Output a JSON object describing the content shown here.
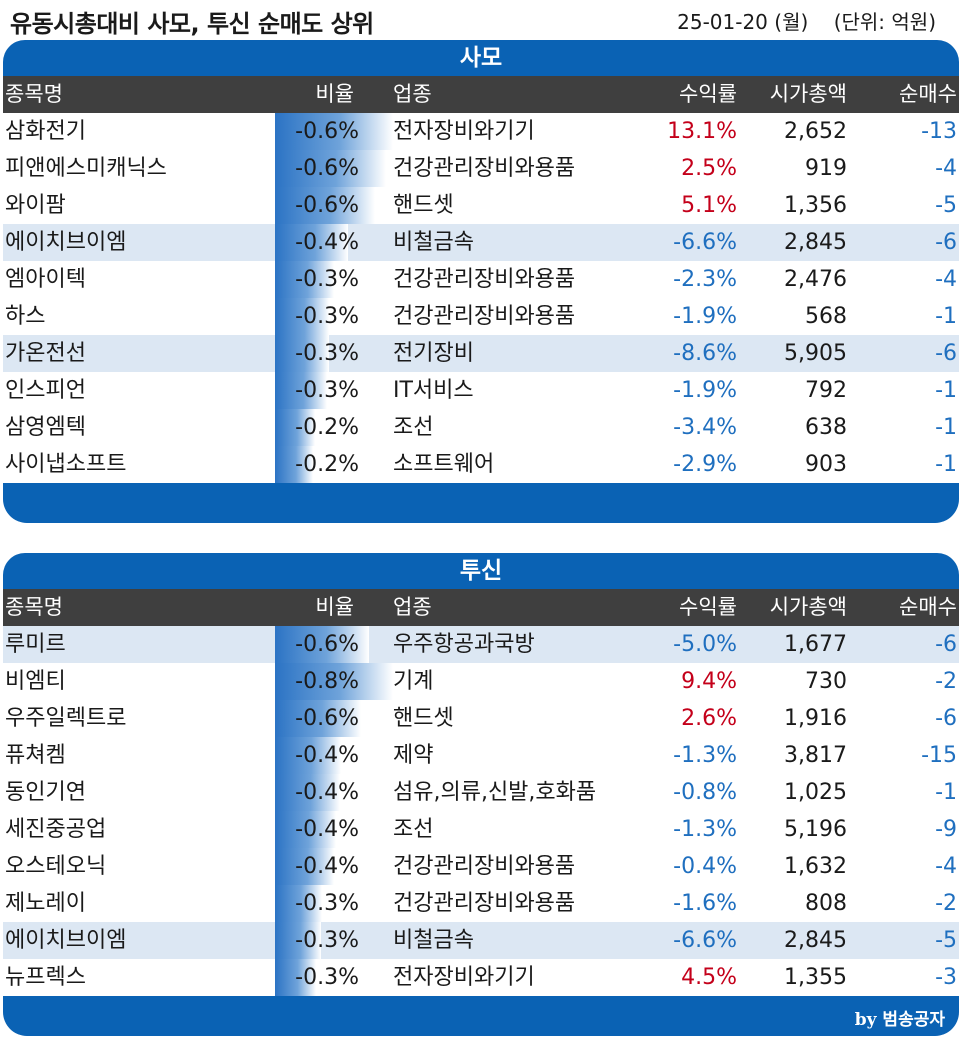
{
  "header": {
    "title": "유동시총대비 사모, 투신 순매도 상위",
    "date_unit": "25-01-20 (월)    (단위: 억원)"
  },
  "columns": [
    "종목명",
    "비율",
    "업종",
    "수익률",
    "시가총액",
    "순매수"
  ],
  "colors": {
    "brand": "#0a62b4",
    "header_row": "#3f3f3f",
    "highlight_row": "#dce7f3",
    "positive": "#c4001a",
    "negative": "#1f6fbf"
  },
  "panels": [
    {
      "title": "사모",
      "rows": [
        {
          "name": "삼화전기",
          "ratio": "-0.6%",
          "bar": 1.0,
          "industry": "전자장비와기기",
          "ret": "13.1%",
          "ret_sign": "pos",
          "cap": "2,652",
          "net": "-13",
          "hl": false
        },
        {
          "name": "피앤에스미캐닉스",
          "ratio": "-0.6%",
          "bar": 0.94,
          "industry": "건강관리장비와용품",
          "ret": "2.5%",
          "ret_sign": "pos",
          "cap": "919",
          "net": "-4",
          "hl": false
        },
        {
          "name": "와이팜",
          "ratio": "-0.6%",
          "bar": 0.85,
          "industry": "핸드셋",
          "ret": "5.1%",
          "ret_sign": "pos",
          "cap": "1,356",
          "net": "-5",
          "hl": false
        },
        {
          "name": "에이치브이엠",
          "ratio": "-0.4%",
          "bar": 0.62,
          "industry": "비철금속",
          "ret": "-6.6%",
          "ret_sign": "neg",
          "cap": "2,845",
          "net": "-6",
          "hl": true
        },
        {
          "name": "엠아이텍",
          "ratio": "-0.3%",
          "bar": 0.5,
          "industry": "건강관리장비와용품",
          "ret": "-2.3%",
          "ret_sign": "neg",
          "cap": "2,476",
          "net": "-4",
          "hl": false
        },
        {
          "name": "하스",
          "ratio": "-0.3%",
          "bar": 0.46,
          "industry": "건강관리장비와용품",
          "ret": "-1.9%",
          "ret_sign": "neg",
          "cap": "568",
          "net": "-1",
          "hl": false
        },
        {
          "name": "가온전선",
          "ratio": "-0.3%",
          "bar": 0.46,
          "industry": "전기장비",
          "ret": "-8.6%",
          "ret_sign": "neg",
          "cap": "5,905",
          "net": "-6",
          "hl": true
        },
        {
          "name": "인스피언",
          "ratio": "-0.3%",
          "bar": 0.44,
          "industry": "IT서비스",
          "ret": "-1.9%",
          "ret_sign": "neg",
          "cap": "792",
          "net": "-1",
          "hl": false
        },
        {
          "name": "삼영엠텍",
          "ratio": "-0.2%",
          "bar": 0.34,
          "industry": "조선",
          "ret": "-3.4%",
          "ret_sign": "neg",
          "cap": "638",
          "net": "-1",
          "hl": false
        },
        {
          "name": "사이냅소프트",
          "ratio": "-0.2%",
          "bar": 0.32,
          "industry": "소프트웨어",
          "ret": "-2.9%",
          "ret_sign": "neg",
          "cap": "903",
          "net": "-1",
          "hl": false
        }
      ]
    },
    {
      "title": "투신",
      "rows": [
        {
          "name": "루미르",
          "ratio": "-0.6%",
          "bar": 0.8,
          "industry": "우주항공과국방",
          "ret": "-5.0%",
          "ret_sign": "neg",
          "cap": "1,677",
          "net": "-6",
          "hl": true
        },
        {
          "name": "비엠티",
          "ratio": "-0.8%",
          "bar": 1.0,
          "industry": "기계",
          "ret": "9.4%",
          "ret_sign": "pos",
          "cap": "730",
          "net": "-2",
          "hl": false
        },
        {
          "name": "우주일렉트로",
          "ratio": "-0.6%",
          "bar": 0.73,
          "industry": "핸드셋",
          "ret": "2.6%",
          "ret_sign": "pos",
          "cap": "1,916",
          "net": "-6",
          "hl": false
        },
        {
          "name": "퓨쳐켐",
          "ratio": "-0.4%",
          "bar": 0.56,
          "industry": "제약",
          "ret": "-1.3%",
          "ret_sign": "neg",
          "cap": "3,817",
          "net": "-15",
          "hl": false
        },
        {
          "name": "동인기연",
          "ratio": "-0.4%",
          "bar": 0.55,
          "industry": "섬유,의류,신발,호화품",
          "ret": "-0.8%",
          "ret_sign": "neg",
          "cap": "1,025",
          "net": "-1",
          "hl": false
        },
        {
          "name": "세진중공업",
          "ratio": "-0.4%",
          "bar": 0.52,
          "industry": "조선",
          "ret": "-1.3%",
          "ret_sign": "neg",
          "cap": "5,196",
          "net": "-9",
          "hl": false
        },
        {
          "name": "오스테오닉",
          "ratio": "-0.4%",
          "bar": 0.5,
          "industry": "건강관리장비와용품",
          "ret": "-0.4%",
          "ret_sign": "neg",
          "cap": "1,632",
          "net": "-4",
          "hl": false
        },
        {
          "name": "제노레이",
          "ratio": "-0.3%",
          "bar": 0.4,
          "industry": "건강관리장비와용품",
          "ret": "-1.6%",
          "ret_sign": "neg",
          "cap": "808",
          "net": "-2",
          "hl": false
        },
        {
          "name": "에이치브이엠",
          "ratio": "-0.3%",
          "bar": 0.39,
          "industry": "비철금속",
          "ret": "-6.6%",
          "ret_sign": "neg",
          "cap": "2,845",
          "net": "-5",
          "hl": true
        },
        {
          "name": "뉴프렉스",
          "ratio": "-0.3%",
          "bar": 0.35,
          "industry": "전자장비와기기",
          "ret": "4.5%",
          "ret_sign": "pos",
          "cap": "1,355",
          "net": "-3",
          "hl": false
        }
      ]
    }
  ],
  "footer": {
    "byline": "by 범송공자"
  }
}
